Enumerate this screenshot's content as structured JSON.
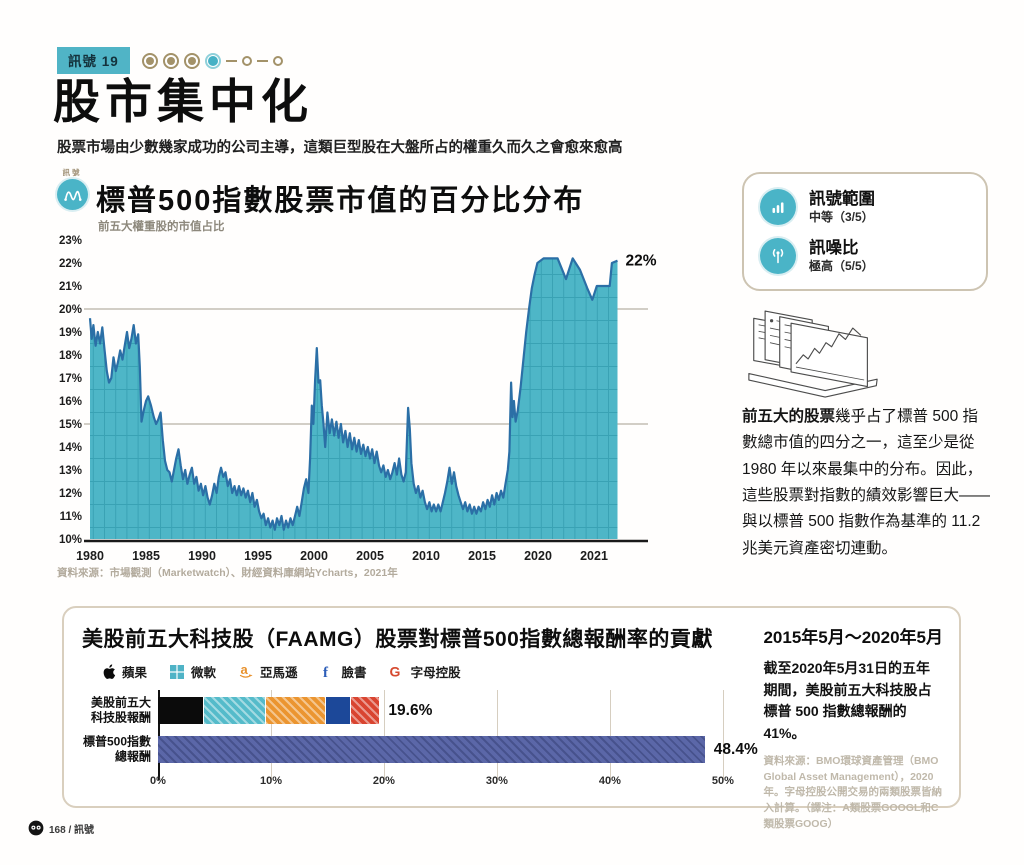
{
  "colors": {
    "accent_teal": "#4ab4c7",
    "chart_fill": "#4eb6c7",
    "chart_line": "#2b6fa6",
    "tan": "#a39269",
    "grid_gray": "#b8b2a5"
  },
  "page": {
    "badge": "訊號 19",
    "dots": [
      "done",
      "done",
      "done",
      "current",
      "todo",
      "todo"
    ],
    "title": "股市集中化",
    "subtitle": "股票市場由少數幾家成功的公司主導，這類巨型股在大盤所占的權重久而久之會愈來愈高",
    "footer": "168 / 訊號"
  },
  "signal_box": {
    "range_label": "訊號範圍",
    "range_value": "中等（3/5）",
    "snr_label": "訊噪比",
    "snr_value": "極高（5/5）"
  },
  "side_note": {
    "lead": "前五大的股票",
    "body": "幾乎占了標普 500 指數總市值的四分之一，這至少是從 1980 年以來最集中的分布。因此，這些股票對指數的績效影響巨大——與以標普 500 指數作為基準的 11.2 兆美元資產密切連動。"
  },
  "main_chart": {
    "icon_label": "訊號",
    "title": "標普500指數股票市值的百分比分布",
    "subtitle": "前五大權重股的市值占比",
    "source": "資料來源：市場觀測（Marketwatch）、財經資料庫網站Ycharts，2021年"
  },
  "faamg": {
    "title": "美股前五大科技股（FAAMG）股票對標普500指數總報酬率的貢獻",
    "period": "2015年5月～2020年5月",
    "legend": [
      {
        "icon": "apple-icon",
        "label": "蘋果"
      },
      {
        "icon": "microsoft-icon",
        "label": "微軟"
      },
      {
        "icon": "amazon-icon",
        "label": "亞馬遜"
      },
      {
        "icon": "facebook-icon",
        "label": "臉書"
      },
      {
        "icon": "google-icon",
        "label": "字母控股"
      }
    ],
    "note": "截至2020年5月31日的五年期間，美股前五大科技股占標普 500 指數總報酬的41%。",
    "source": "資料來源：BMO環球資產管理（BMO Global Asset Management），2020年。字母控股公開交易的兩類股票皆納入計算。（譯注：A類股票GOOGL和C類股票GOOG）"
  },
  "chart_data": [
    {
      "type": "area",
      "title": "標普500指數股票市值的百分比分布",
      "subtitle": "前五大權重股的市值占比",
      "ylabel": "前五大權重股市值占比(%)",
      "ylim": [
        10,
        23
      ],
      "yticks": [
        10,
        11,
        12,
        13,
        14,
        15,
        16,
        17,
        18,
        19,
        20,
        21,
        22,
        23
      ],
      "xticks": [
        "1980",
        "1985",
        "1990",
        "1995",
        "2000",
        "2005",
        "2010",
        "2015",
        "2020",
        "2021"
      ],
      "x_axis_note": "ticks evenly spaced; 5-year steps 1980-2020, expanded final 2020-2021 segment",
      "gridlines_pct": [
        15,
        20
      ],
      "annotation": {
        "text": "22%",
        "value": 22.1
      },
      "points": [
        [
          1980.0,
          19.6
        ],
        [
          1980.15,
          18.7
        ],
        [
          1980.3,
          19.3
        ],
        [
          1980.5,
          18.4
        ],
        [
          1980.7,
          19.0
        ],
        [
          1980.9,
          18.5
        ],
        [
          1981.1,
          19.2
        ],
        [
          1981.3,
          18.2
        ],
        [
          1981.5,
          17.3
        ],
        [
          1981.7,
          16.8
        ],
        [
          1981.9,
          17.0
        ],
        [
          1982.1,
          17.9
        ],
        [
          1982.3,
          17.3
        ],
        [
          1982.5,
          17.7
        ],
        [
          1982.7,
          18.2
        ],
        [
          1982.9,
          17.8
        ],
        [
          1983.1,
          18.4
        ],
        [
          1983.3,
          19.0
        ],
        [
          1983.5,
          18.3
        ],
        [
          1983.7,
          18.7
        ],
        [
          1983.9,
          19.3
        ],
        [
          1984.1,
          18.5
        ],
        [
          1984.3,
          18.9
        ],
        [
          1984.45,
          17.5
        ],
        [
          1984.6,
          15.1
        ],
        [
          1984.8,
          15.6
        ],
        [
          1985.0,
          16.0
        ],
        [
          1985.2,
          16.2
        ],
        [
          1985.45,
          15.8
        ],
        [
          1985.7,
          15.3
        ],
        [
          1985.9,
          15.0
        ],
        [
          1986.1,
          15.2
        ],
        [
          1986.3,
          15.5
        ],
        [
          1986.5,
          14.3
        ],
        [
          1986.7,
          13.4
        ],
        [
          1986.9,
          13.0
        ],
        [
          1987.1,
          12.9
        ],
        [
          1987.3,
          12.5
        ],
        [
          1987.5,
          13.0
        ],
        [
          1987.7,
          13.5
        ],
        [
          1987.9,
          13.9
        ],
        [
          1988.1,
          13.2
        ],
        [
          1988.3,
          12.6
        ],
        [
          1988.5,
          13.0
        ],
        [
          1988.7,
          12.4
        ],
        [
          1988.9,
          12.8
        ],
        [
          1989.1,
          13.1
        ],
        [
          1989.3,
          12.4
        ],
        [
          1989.5,
          12.7
        ],
        [
          1989.7,
          12.1
        ],
        [
          1989.9,
          12.4
        ],
        [
          1990.1,
          11.9
        ],
        [
          1990.3,
          12.3
        ],
        [
          1990.5,
          11.8
        ],
        [
          1990.7,
          11.5
        ],
        [
          1990.9,
          11.9
        ],
        [
          1991.1,
          12.4
        ],
        [
          1991.3,
          12.0
        ],
        [
          1991.5,
          12.7
        ],
        [
          1991.7,
          13.1
        ],
        [
          1991.9,
          12.7
        ],
        [
          1992.1,
          12.9
        ],
        [
          1992.3,
          12.3
        ],
        [
          1992.5,
          12.6
        ],
        [
          1992.7,
          12.0
        ],
        [
          1992.9,
          12.3
        ],
        [
          1993.1,
          11.9
        ],
        [
          1993.3,
          12.3
        ],
        [
          1993.5,
          11.9
        ],
        [
          1993.7,
          12.2
        ],
        [
          1993.9,
          11.8
        ],
        [
          1994.1,
          12.1
        ],
        [
          1994.3,
          11.6
        ],
        [
          1994.5,
          12.0
        ],
        [
          1994.7,
          11.4
        ],
        [
          1994.9,
          11.7
        ],
        [
          1995.1,
          11.2
        ],
        [
          1995.3,
          10.9
        ],
        [
          1995.5,
          11.1
        ],
        [
          1995.7,
          10.6
        ],
        [
          1995.9,
          10.9
        ],
        [
          1996.1,
          10.5
        ],
        [
          1996.3,
          10.8
        ],
        [
          1996.5,
          10.4
        ],
        [
          1996.7,
          10.9
        ],
        [
          1996.9,
          10.6
        ],
        [
          1997.1,
          11.0
        ],
        [
          1997.3,
          10.4
        ],
        [
          1997.5,
          10.8
        ],
        [
          1997.7,
          10.5
        ],
        [
          1997.9,
          10.9
        ],
        [
          1998.1,
          10.6
        ],
        [
          1998.3,
          11.0
        ],
        [
          1998.5,
          11.4
        ],
        [
          1998.7,
          11.0
        ],
        [
          1998.9,
          11.6
        ],
        [
          1999.1,
          12.2
        ],
        [
          1999.3,
          12.6
        ],
        [
          1999.5,
          12.0
        ],
        [
          1999.65,
          13.5
        ],
        [
          1999.8,
          15.8
        ],
        [
          1999.95,
          15.0
        ],
        [
          2000.1,
          16.9
        ],
        [
          2000.25,
          18.3
        ],
        [
          2000.4,
          16.8
        ],
        [
          2000.55,
          16.9
        ],
        [
          2000.7,
          15.8
        ],
        [
          2000.85,
          15.0
        ],
        [
          2001.0,
          14.0
        ],
        [
          2001.2,
          15.5
        ],
        [
          2001.4,
          14.6
        ],
        [
          2001.6,
          15.2
        ],
        [
          2001.8,
          14.5
        ],
        [
          2002.0,
          15.1
        ],
        [
          2002.2,
          14.4
        ],
        [
          2002.4,
          15.0
        ],
        [
          2002.6,
          14.2
        ],
        [
          2002.8,
          14.7
        ],
        [
          2003.0,
          14.0
        ],
        [
          2003.2,
          14.6
        ],
        [
          2003.4,
          13.9
        ],
        [
          2003.6,
          14.4
        ],
        [
          2003.8,
          13.8
        ],
        [
          2004.0,
          14.3
        ],
        [
          2004.2,
          13.7
        ],
        [
          2004.4,
          14.1
        ],
        [
          2004.6,
          13.6
        ],
        [
          2004.8,
          14.0
        ],
        [
          2005.0,
          13.5
        ],
        [
          2005.2,
          13.9
        ],
        [
          2005.4,
          13.3
        ],
        [
          2005.6,
          13.8
        ],
        [
          2005.8,
          13.2
        ],
        [
          2006.0,
          12.9
        ],
        [
          2006.2,
          13.2
        ],
        [
          2006.4,
          12.7
        ],
        [
          2006.6,
          13.0
        ],
        [
          2006.8,
          12.6
        ],
        [
          2007.0,
          12.9
        ],
        [
          2007.2,
          13.3
        ],
        [
          2007.4,
          12.8
        ],
        [
          2007.6,
          13.5
        ],
        [
          2007.8,
          12.8
        ],
        [
          2008.0,
          12.5
        ],
        [
          2008.2,
          12.9
        ],
        [
          2008.4,
          15.7
        ],
        [
          2008.55,
          14.8
        ],
        [
          2008.7,
          13.3
        ],
        [
          2008.9,
          12.4
        ],
        [
          2009.1,
          12.0
        ],
        [
          2009.3,
          12.3
        ],
        [
          2009.5,
          11.8
        ],
        [
          2009.7,
          12.1
        ],
        [
          2009.9,
          11.6
        ],
        [
          2010.1,
          11.3
        ],
        [
          2010.3,
          11.6
        ],
        [
          2010.5,
          11.2
        ],
        [
          2010.7,
          11.5
        ],
        [
          2010.9,
          11.2
        ],
        [
          2011.1,
          11.5
        ],
        [
          2011.3,
          11.2
        ],
        [
          2011.5,
          11.6
        ],
        [
          2011.7,
          12.0
        ],
        [
          2011.9,
          12.5
        ],
        [
          2012.1,
          13.1
        ],
        [
          2012.3,
          12.4
        ],
        [
          2012.5,
          12.9
        ],
        [
          2012.7,
          12.3
        ],
        [
          2012.9,
          11.9
        ],
        [
          2013.1,
          11.6
        ],
        [
          2013.3,
          11.3
        ],
        [
          2013.5,
          11.6
        ],
        [
          2013.7,
          11.2
        ],
        [
          2013.9,
          11.5
        ],
        [
          2014.1,
          11.1
        ],
        [
          2014.3,
          11.4
        ],
        [
          2014.5,
          11.1
        ],
        [
          2014.7,
          11.4
        ],
        [
          2014.9,
          11.2
        ],
        [
          2015.1,
          11.6
        ],
        [
          2015.3,
          11.3
        ],
        [
          2015.5,
          11.7
        ],
        [
          2015.7,
          11.4
        ],
        [
          2015.9,
          11.9
        ],
        [
          2016.1,
          11.5
        ],
        [
          2016.3,
          12.0
        ],
        [
          2016.5,
          11.7
        ],
        [
          2016.7,
          12.1
        ],
        [
          2016.9,
          11.8
        ],
        [
          2017.1,
          12.4
        ],
        [
          2017.3,
          13.0
        ],
        [
          2017.45,
          13.8
        ],
        [
          2017.6,
          16.8
        ],
        [
          2017.72,
          15.3
        ],
        [
          2017.85,
          16.0
        ],
        [
          2018.0,
          15.1
        ],
        [
          2018.2,
          15.6
        ],
        [
          2018.45,
          16.6
        ],
        [
          2018.7,
          17.8
        ],
        [
          2018.95,
          19.0
        ],
        [
          2019.2,
          20.0
        ],
        [
          2019.45,
          20.9
        ],
        [
          2019.7,
          21.5
        ],
        [
          2019.95,
          22.0
        ],
        [
          2020.1,
          22.2
        ],
        [
          2020.35,
          22.2
        ],
        [
          2020.5,
          21.3
        ],
        [
          2020.62,
          22.2
        ],
        [
          2020.75,
          21.7
        ],
        [
          2020.88,
          20.9
        ],
        [
          2020.97,
          20.4
        ],
        [
          2021.05,
          21.0
        ],
        [
          2021.28,
          21.0
        ],
        [
          2021.32,
          22.0
        ],
        [
          2021.42,
          22.1
        ]
      ]
    },
    {
      "type": "stacked_bar_h",
      "title": "美股前五大科技股（FAAMG）股票對標普500指數總報酬率的貢獻",
      "xlim": [
        0,
        52
      ],
      "xticks": [
        0,
        10,
        20,
        30,
        40,
        50
      ],
      "xtick_labels": [
        "0%",
        "10%",
        "20%",
        "30%",
        "40%",
        "50%"
      ],
      "rows": [
        {
          "label_lines": [
            "美股前五大",
            "科技股報酬"
          ],
          "total_label": "19.6%",
          "total": 19.6,
          "segments": [
            {
              "name": "蘋果",
              "value": 4.1,
              "color": "#0b0b0b",
              "hatch": false
            },
            {
              "name": "微軟",
              "value": 5.5,
              "color": "#55bbca",
              "hatch": true
            },
            {
              "name": "亞馬遜",
              "value": 5.3,
              "color": "#eb9530",
              "hatch": true
            },
            {
              "name": "臉書",
              "value": 2.2,
              "color": "#1c4899",
              "hatch": false
            },
            {
              "name": "字母控股",
              "value": 2.5,
              "color": "#d94430",
              "hatch": true
            }
          ]
        },
        {
          "label_lines": [
            "標普500指數",
            "總報酬"
          ],
          "total_label": "48.4%",
          "total": 48.4,
          "segments": [
            {
              "name": "標普500指數總報酬",
              "value": 48.4,
              "color": "#5b67a8",
              "hatch": false,
              "dark_hatch": true
            }
          ]
        }
      ]
    }
  ]
}
